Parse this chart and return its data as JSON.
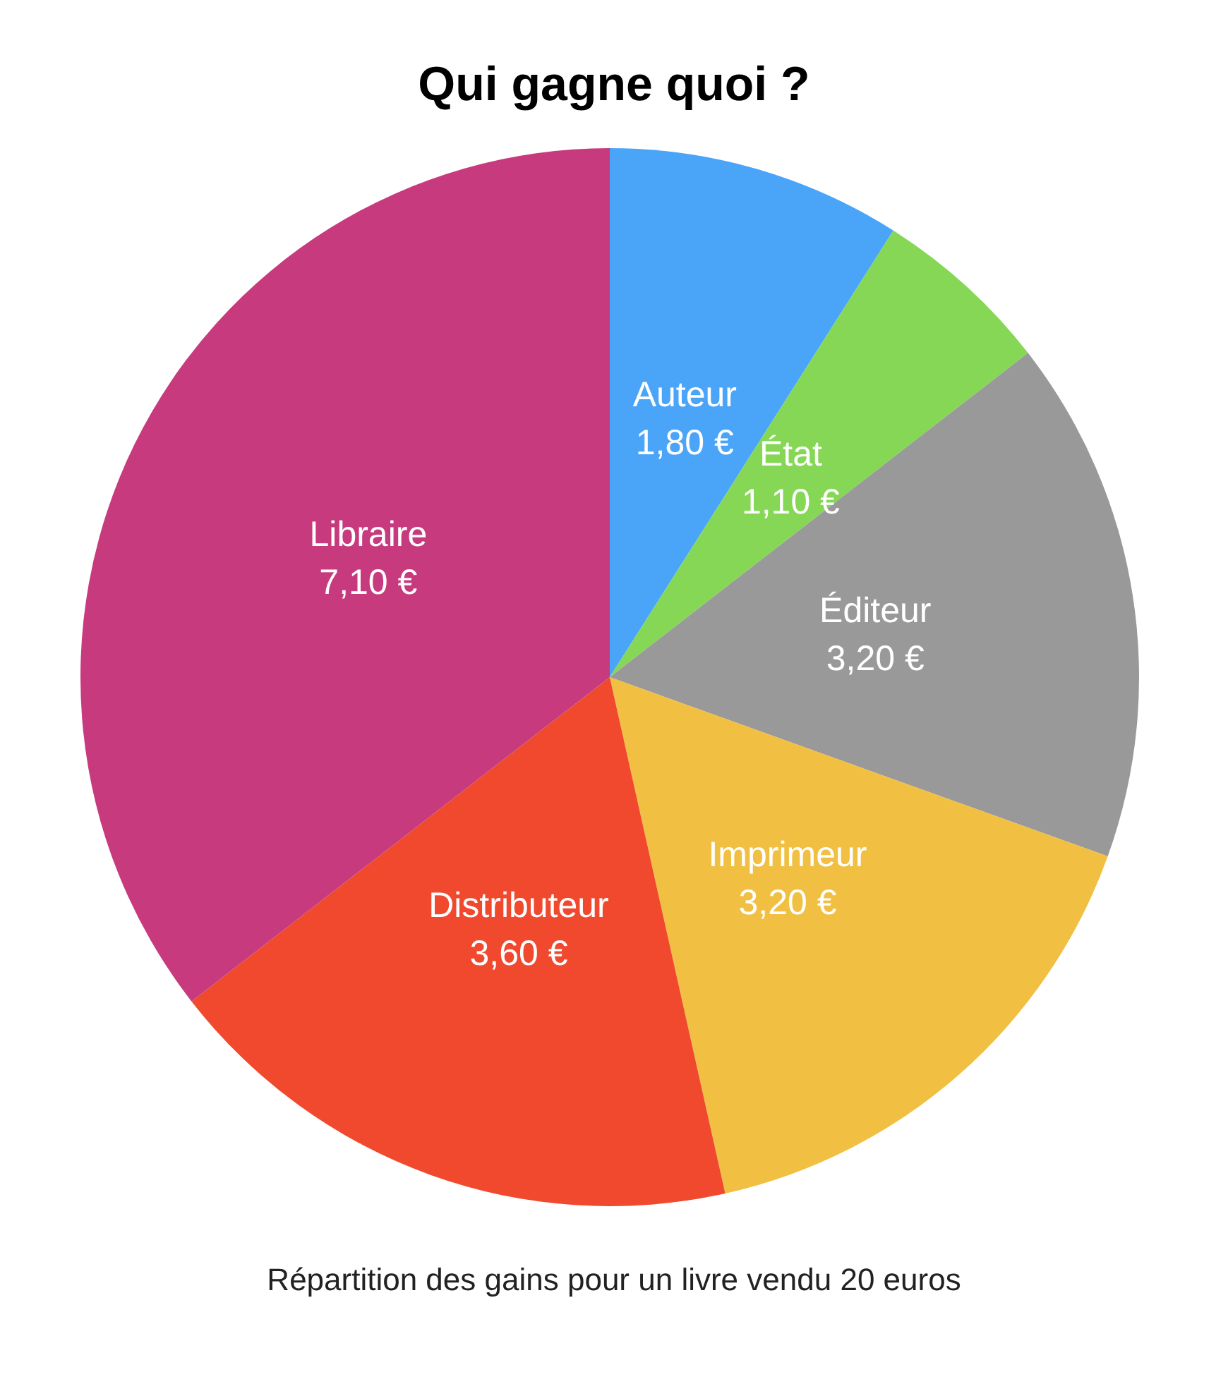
{
  "chart_data": {
    "type": "pie",
    "title": "Qui gagne quoi ?",
    "categories": [
      "Auteur",
      "État",
      "Éditeur",
      "Imprimeur",
      "Distributeur",
      "Libraire"
    ],
    "values": [
      1.8,
      1.1,
      3.2,
      3.2,
      3.6,
      7.1
    ],
    "value_labels": [
      "1,80 €",
      "1,10 €",
      "3,20 €",
      "3,20 €",
      "3,60 €",
      "7,10 €"
    ],
    "colors": [
      "#4aa5f8",
      "#85d755",
      "#999999",
      "#f1c042",
      "#f0492e",
      "#c73a7e"
    ],
    "annotations": [
      "Répartition des gains pour un livre vendu 20 euros"
    ],
    "legend": false
  }
}
